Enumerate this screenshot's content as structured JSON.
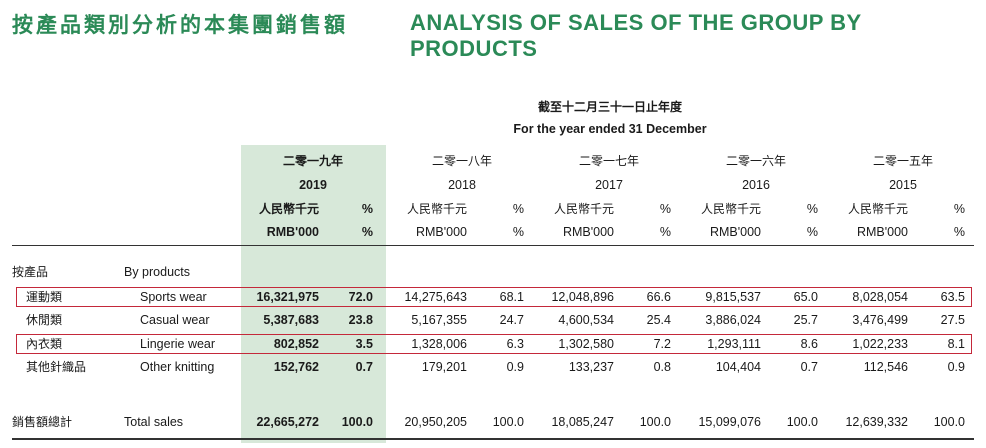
{
  "title_zh": "按產品類別分析的本集團銷售額",
  "title_en": "ANALYSIS OF SALES OF THE GROUP BY PRODUCTS",
  "period_zh": "截至十二月三十一日止年度",
  "period_en": "For the year ended 31 December",
  "years": [
    {
      "zh": "二零一九年",
      "en": "2019",
      "amount_zh": "人民幣千元",
      "pct_zh": "%",
      "amount_en": "RMB'000",
      "pct_en": "%"
    },
    {
      "zh": "二零一八年",
      "en": "2018",
      "amount_zh": "人民幣千元",
      "pct_zh": "%",
      "amount_en": "RMB'000",
      "pct_en": "%"
    },
    {
      "zh": "二零一七年",
      "en": "2017",
      "amount_zh": "人民幣千元",
      "pct_zh": "%",
      "amount_en": "RMB'000",
      "pct_en": "%"
    },
    {
      "zh": "二零一六年",
      "en": "2016",
      "amount_zh": "人民幣千元",
      "pct_zh": "%",
      "amount_en": "RMB'000",
      "pct_en": "%"
    },
    {
      "zh": "二零一五年",
      "en": "2015",
      "amount_zh": "人民幣千元",
      "pct_zh": "%",
      "amount_en": "RMB'000",
      "pct_en": "%"
    }
  ],
  "section": {
    "zh": "按產品",
    "en": "By products"
  },
  "rows": [
    {
      "zh": "運動類",
      "en": "Sports wear",
      "values": [
        "16,321,975",
        "72.0",
        "14,275,643",
        "68.1",
        "12,048,896",
        "66.6",
        "9,815,537",
        "65.0",
        "8,028,054",
        "63.5"
      ]
    },
    {
      "zh": "休閒類",
      "en": "Casual wear",
      "values": [
        "5,387,683",
        "23.8",
        "5,167,355",
        "24.7",
        "4,600,534",
        "25.4",
        "3,886,024",
        "25.7",
        "3,476,499",
        "27.5"
      ]
    },
    {
      "zh": "內衣類",
      "en": "Lingerie wear",
      "values": [
        "802,852",
        "3.5",
        "1,328,006",
        "6.3",
        "1,302,580",
        "7.2",
        "1,293,111",
        "8.6",
        "1,022,233",
        "8.1"
      ]
    },
    {
      "zh": "其他針織品",
      "en": "Other knitting",
      "values": [
        "152,762",
        "0.7",
        "179,201",
        "0.9",
        "133,237",
        "0.8",
        "104,404",
        "0.7",
        "112,546",
        "0.9"
      ]
    }
  ],
  "total": {
    "zh": "銷售額總計",
    "en": "Total sales",
    "values": [
      "22,665,272",
      "100.0",
      "20,950,205",
      "100.0",
      "18,085,247",
      "100.0",
      "15,099,076",
      "100.0",
      "12,639,332",
      "100.0"
    ]
  },
  "highlight_color": "#d7e8d9",
  "title_color": "#2b8a57",
  "box_color": "#c4283a"
}
